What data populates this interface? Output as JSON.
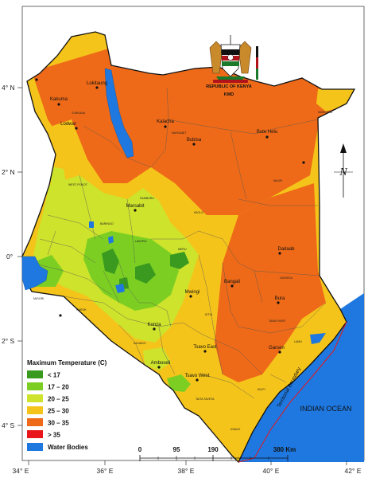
{
  "map": {
    "axes": {
      "lon_labels": [
        "34° E",
        "36° E",
        "38° E",
        "40° E",
        "42° E"
      ],
      "lat_labels": [
        "4° N",
        "2° N",
        "0°",
        "2° S",
        "4° S"
      ]
    },
    "emblem": {
      "country": "REPUBLIC OF KENYA",
      "agency": "KMD"
    },
    "legend": {
      "title": "Maximum Temperature (C)",
      "classes": [
        {
          "label": "< 17",
          "color": "#3a9a1f"
        },
        {
          "label": "17 – 20",
          "color": "#7ccf22"
        },
        {
          "label": "20 – 25",
          "color": "#cde32c"
        },
        {
          "label": "25 – 30",
          "color": "#f5c41a"
        },
        {
          "label": "30 – 35",
          "color": "#ee6a18"
        },
        {
          "label": "> 35",
          "color": "#e8161b"
        }
      ],
      "water_label": "Water Bodies",
      "water_color": "#1e78e0"
    },
    "scale_bar": {
      "ticks": [
        "0",
        "95",
        "190",
        "380 Km"
      ]
    },
    "labels": {
      "ocean": "INDIAN OCEAN",
      "boundary": "Territorial Boundary"
    },
    "cities": {
      "lokitaung": "Lokitaung",
      "kakuma": "Kakuma",
      "lodwar": "Lodwar",
      "kalacha": "Kalacha",
      "bubisa": "Bubisa",
      "bute_helu": "Bute Helu",
      "marsabit": "Marsabit",
      "dadaab": "Dadaab",
      "bangali": "Bangali",
      "mwingi": "Mwingi",
      "bura": "Bura",
      "konza": "Konza",
      "voi_east": "Tsavo East",
      "garsen": "Garsen",
      "amboseli": "Amboseli",
      "voi_west": "Tsavo West"
    },
    "regions": {
      "turkana": "TURKANA",
      "mandera": "MANDERA",
      "marsabit_county": "MARSABIT",
      "wajir": "WAJIR",
      "west_pokot": "WEST POKOT",
      "samburu": "SAMBURU",
      "isiolo": "ISIOLO",
      "garissa": "GARISSA",
      "tana_river": "TANA RIVER",
      "kitui": "KITUI",
      "lamu": "LAMU",
      "kilifi": "KILIFI",
      "kwale": "KWALE",
      "taita_taveta": "TAITA TAVETA",
      "kajiado": "KAJIADO",
      "narok": "NAROK",
      "migori": "MIGORI",
      "meru": "MERU",
      "laikipia": "LAIKIPIA",
      "baringo": "BARINGO"
    }
  }
}
